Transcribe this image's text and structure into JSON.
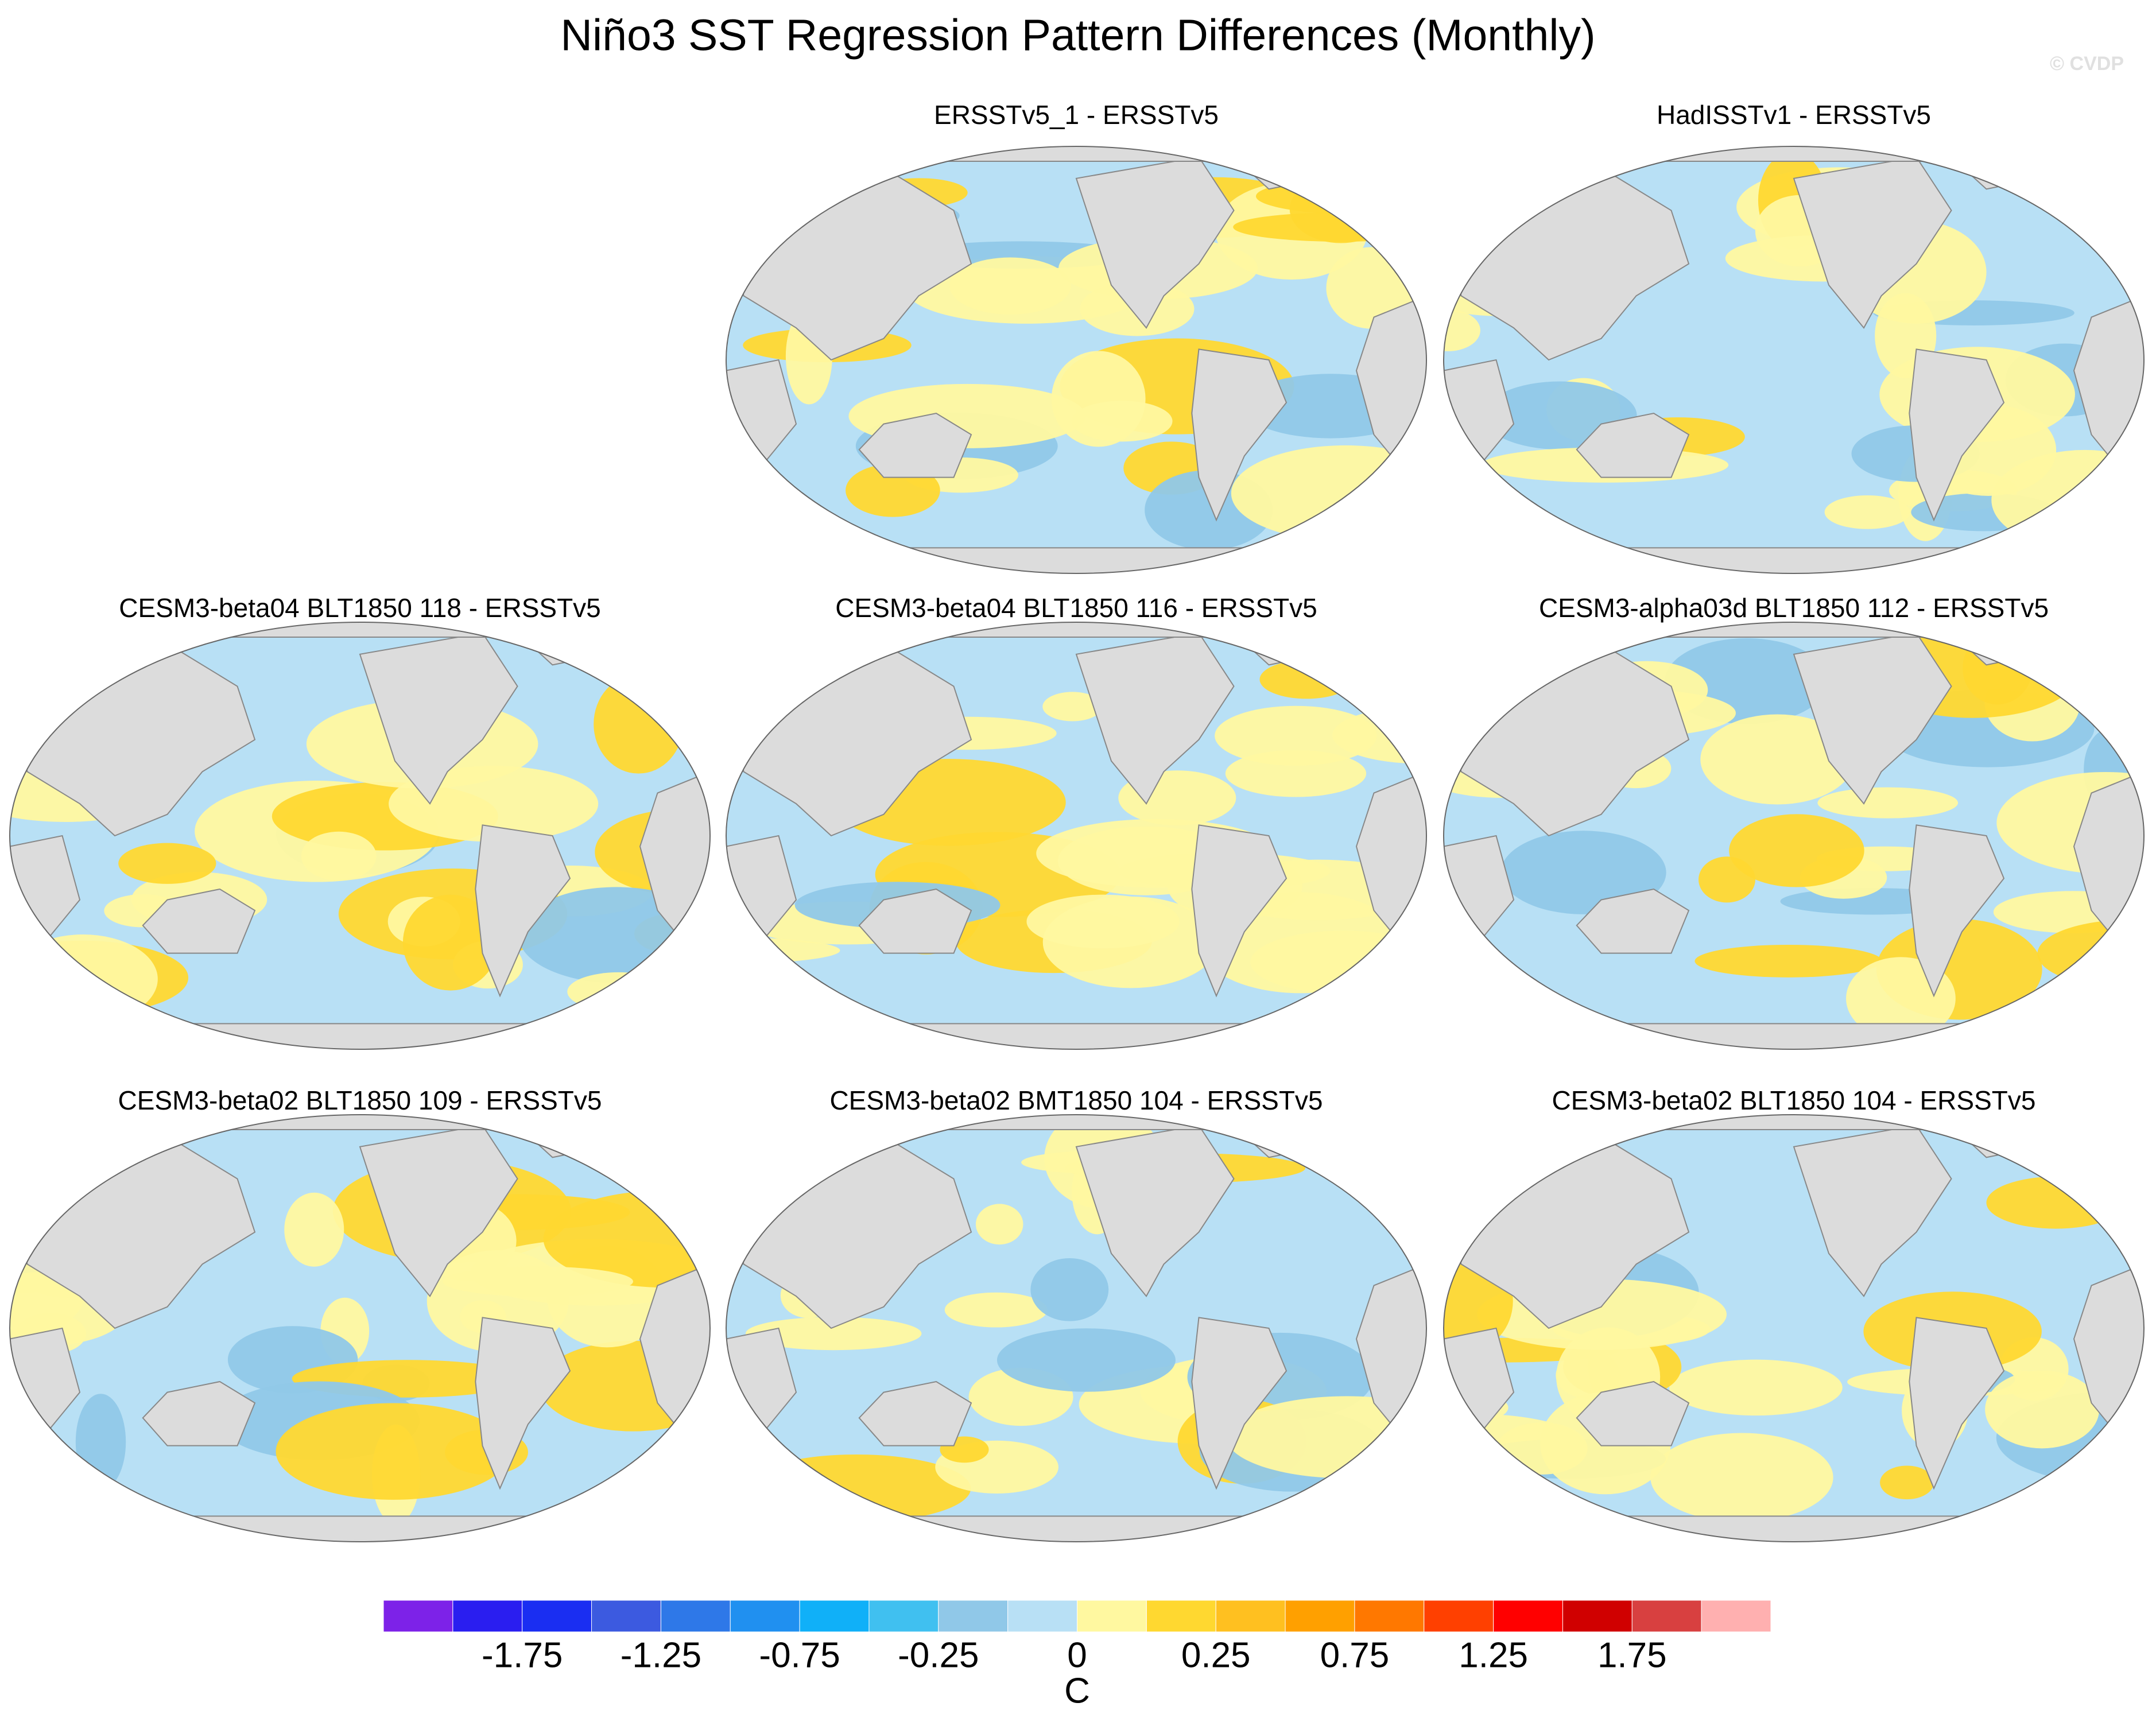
{
  "title": "Niño3 SST Regression Pattern Differences (Monthly)",
  "watermark": "© CVDP",
  "panels": [
    {
      "title": "ERSSTv5_1 - ERSSTv5"
    },
    {
      "title": "HadISSTv1 - ERSSTv5"
    },
    {
      "title": "CESM3-beta04 BLT1850 118 - ERSSTv5"
    },
    {
      "title": "CESM3-beta04 BLT1850 116 - ERSSTv5"
    },
    {
      "title": "CESM3-alpha03d BLT1850 112 - ERSSTv5"
    },
    {
      "title": "CESM3-beta02 BLT1850 109 - ERSSTv5"
    },
    {
      "title": "CESM3-beta02 BMT1850 104 - ERSSTv5"
    },
    {
      "title": "CESM3-beta02 BLT1850 104 - ERSSTv5"
    }
  ],
  "colorbar": {
    "colors": [
      "#7d22e8",
      "#2a1ef0",
      "#1a2ef2",
      "#3c5ae0",
      "#2e78e8",
      "#2090f0",
      "#10b0f8",
      "#40c0f0",
      "#90c8e8",
      "#b8e0f5",
      "#fff8a0",
      "#ffd830",
      "#ffc020",
      "#ffa000",
      "#ff7800",
      "#ff4000",
      "#ff0000",
      "#d00000",
      "#d84040",
      "#ffb0b0"
    ],
    "ticks": [
      -1.75,
      -1.25,
      -0.75,
      -0.25,
      0,
      0.25,
      0.75,
      1.25,
      1.75
    ],
    "label": "C"
  }
}
